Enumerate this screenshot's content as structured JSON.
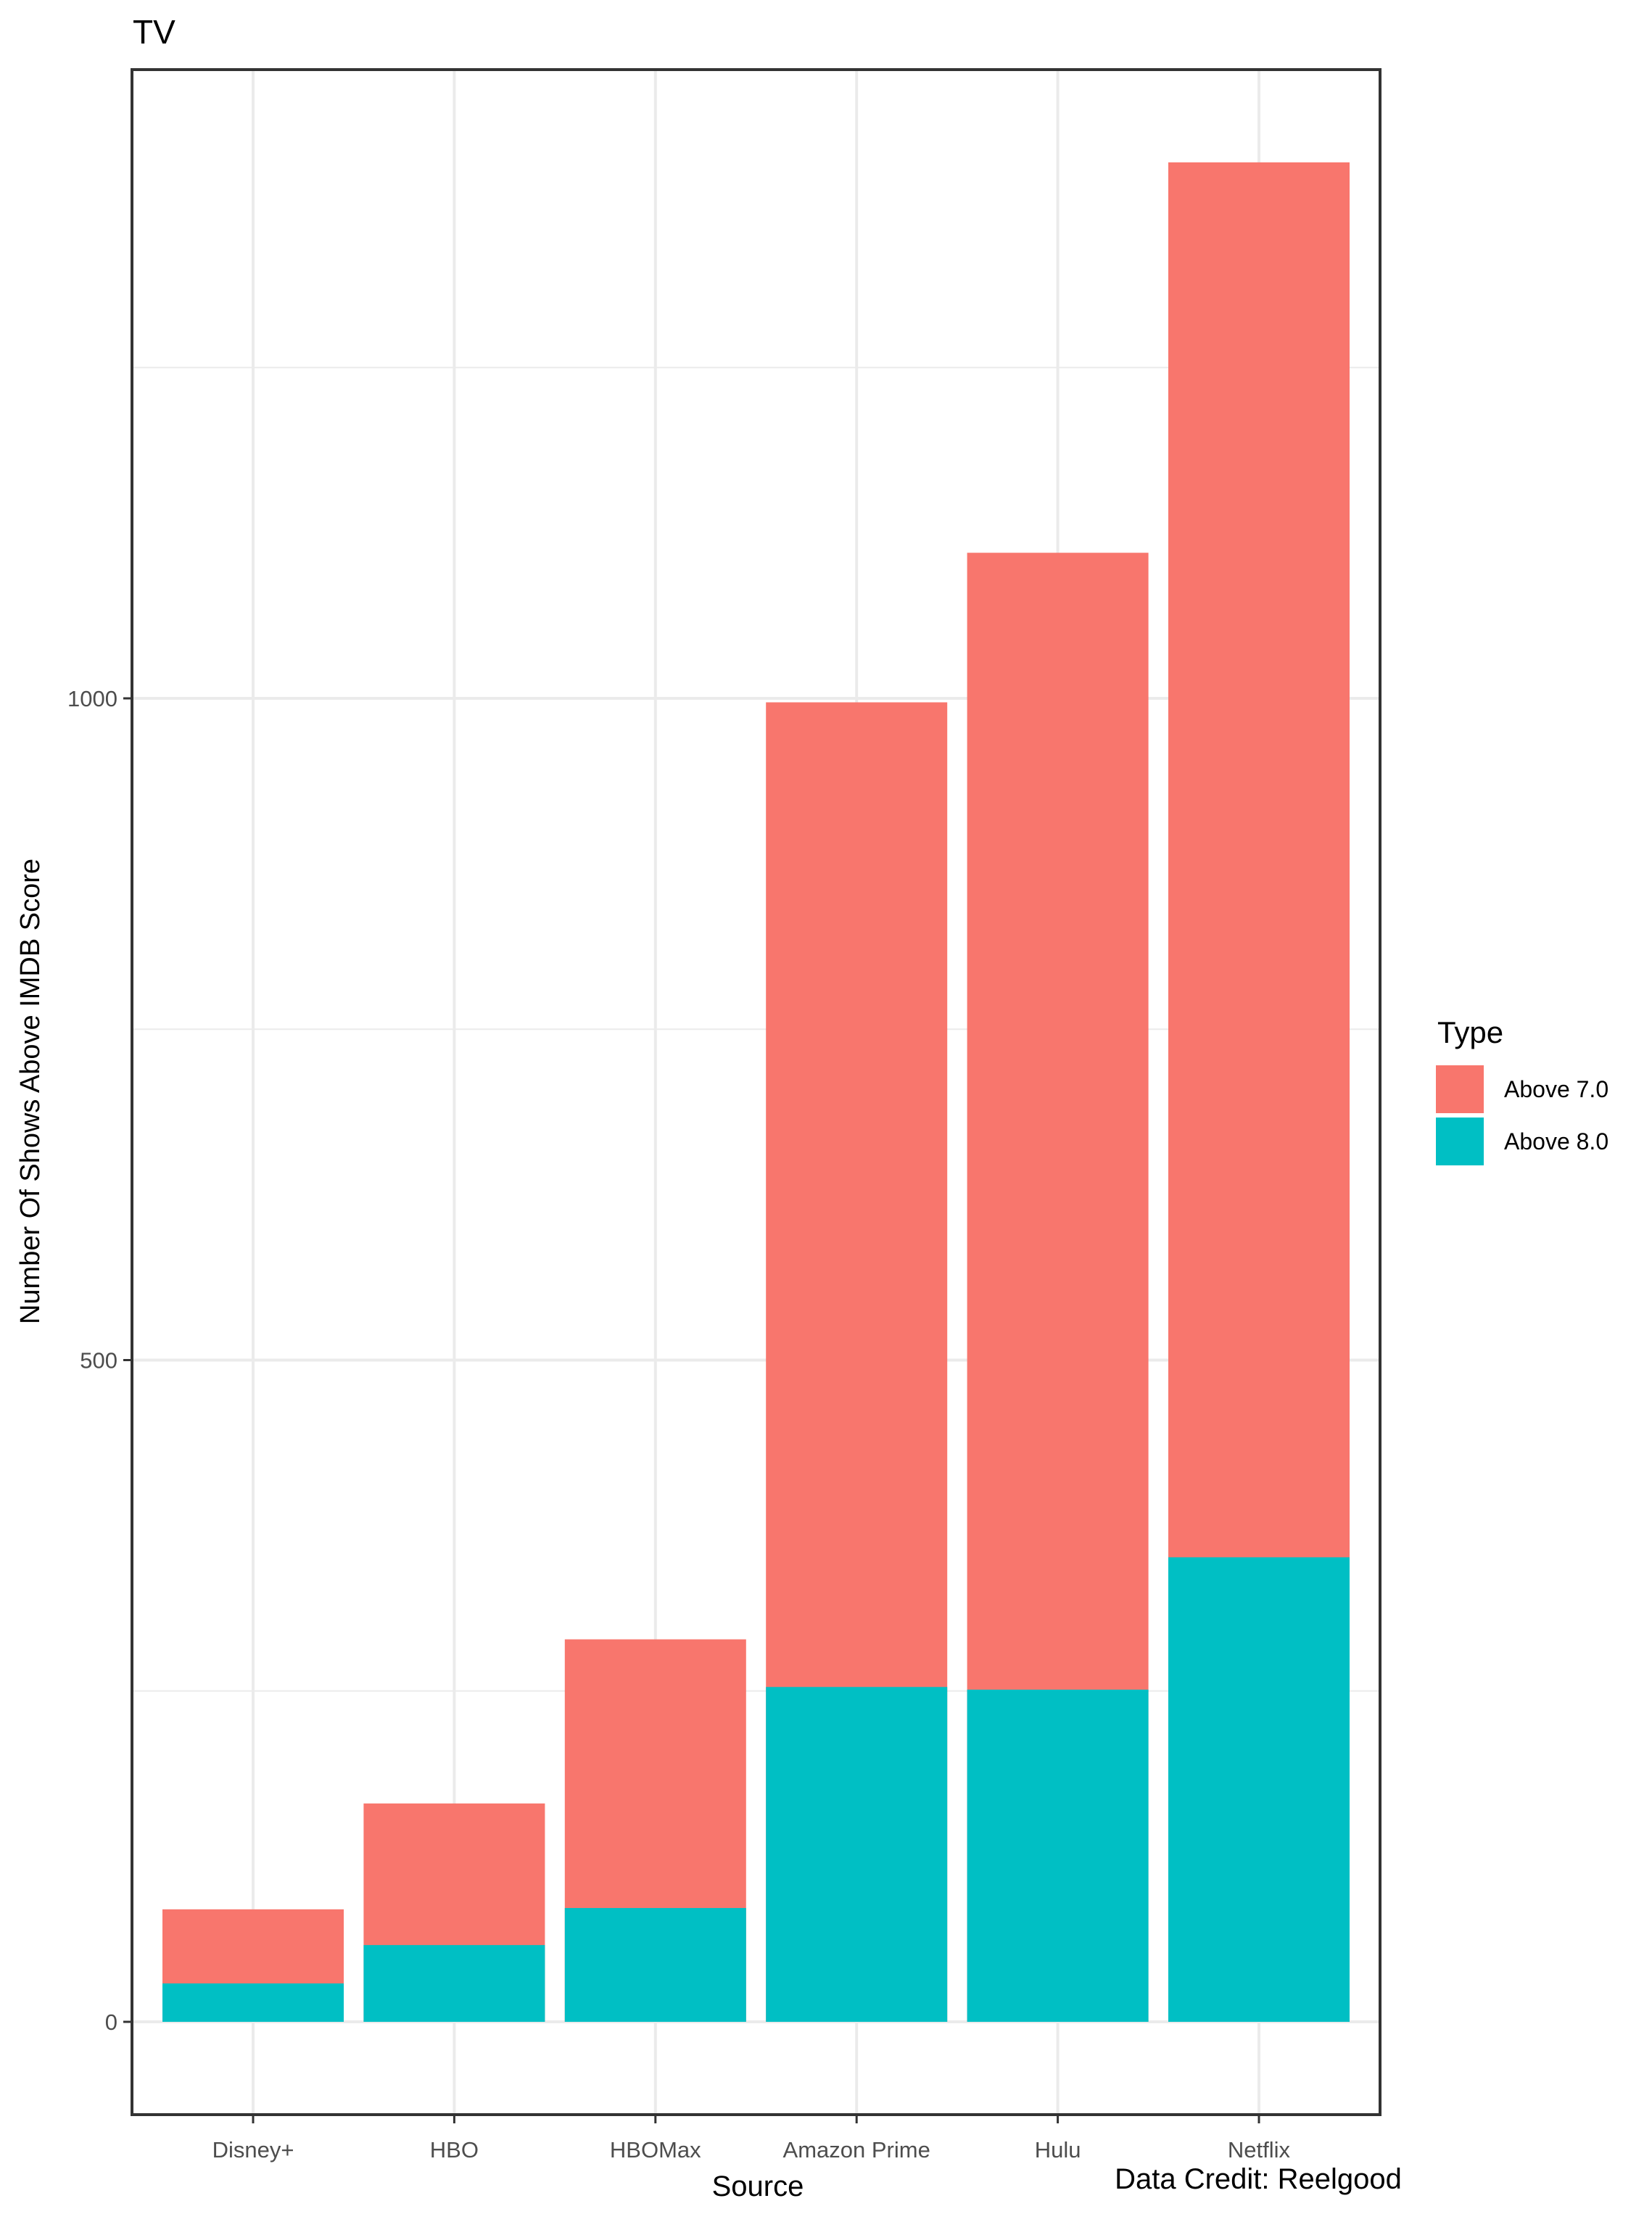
{
  "chart_data": {
    "type": "bar",
    "stacked": false,
    "overlay": true,
    "title": "TV",
    "xlabel": "Source",
    "ylabel": "Number Of Shows Above IMDB Score",
    "caption": "Data Credit: Reelgood",
    "categories": [
      "Disney+",
      "HBO",
      "HBOMax",
      "Amazon Prime",
      "Hulu",
      "Netflix"
    ],
    "series": [
      {
        "name": "Above 7.0",
        "color": "#F8766D",
        "values": [
          85,
          165,
          289,
          997,
          1110,
          1405
        ]
      },
      {
        "name": "Above 8.0",
        "color": "#00BFC4",
        "values": [
          29,
          58,
          86,
          253,
          251,
          351
        ]
      }
    ],
    "ylim": [
      -70,
      1475
    ],
    "yticks": [
      0,
      500,
      1000
    ],
    "ytick_labels": [
      "0",
      "500",
      "1000"
    ],
    "grid": true,
    "legend": {
      "title": "Type",
      "position": "right"
    }
  }
}
